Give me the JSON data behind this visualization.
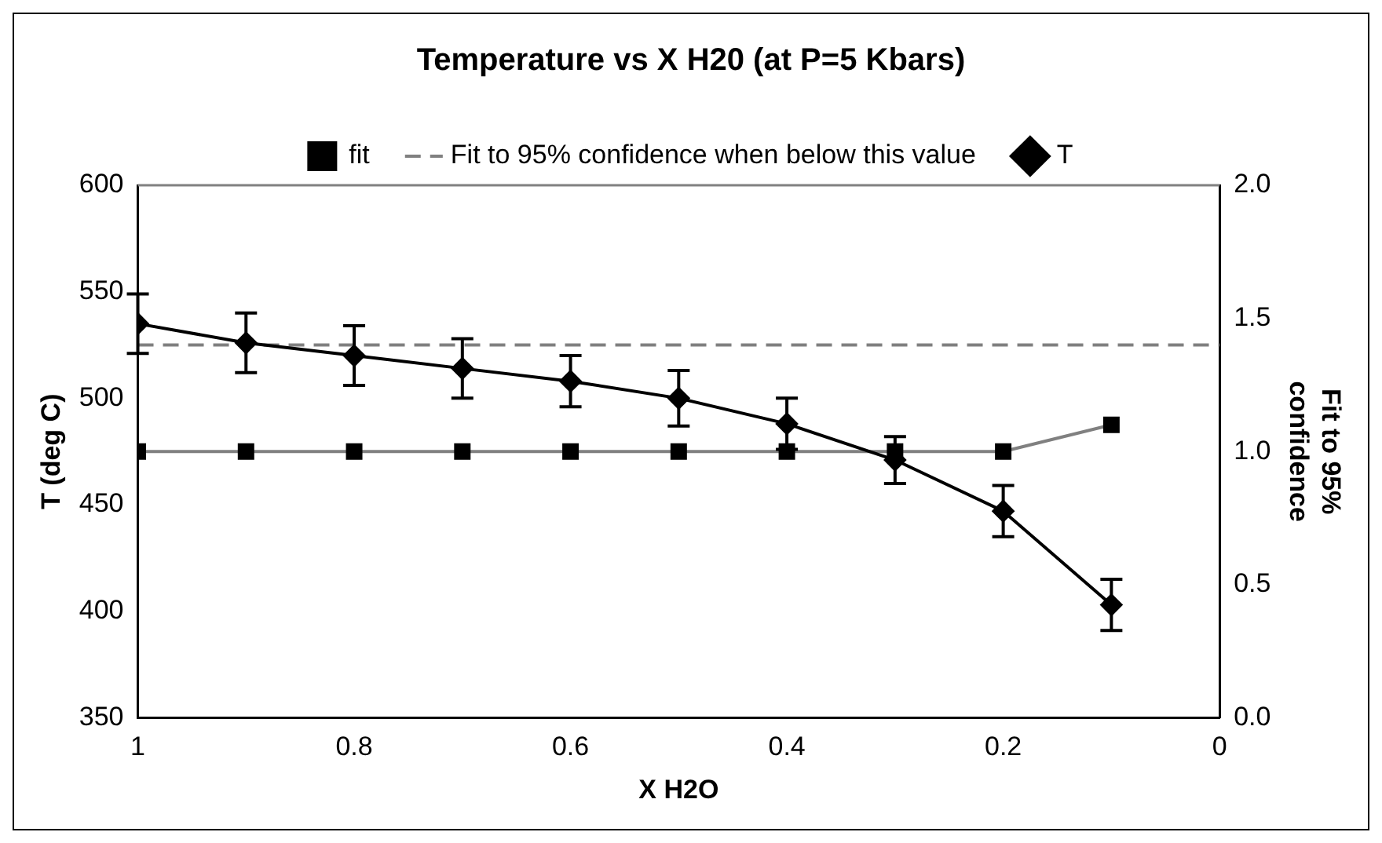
{
  "chart_data": {
    "type": "line",
    "title": "Temperature vs X H20 (at P=5 Kbars)",
    "xlabel": "X H2O",
    "ylabel": "T (deg C)",
    "y2label": "Fit to 95% confidence",
    "x": [
      1,
      0.9,
      0.8,
      0.7,
      0.6,
      0.5,
      0.4,
      0.3,
      0.2,
      0.1
    ],
    "series": [
      {
        "name": "fit",
        "color": "#808080",
        "axis": "y2",
        "marker": "square",
        "values": [
          1.0,
          1.0,
          1.0,
          1.0,
          1.0,
          1.0,
          1.0,
          1.0,
          1.0,
          1.1
        ]
      },
      {
        "name": "Fit to 95% confidence when below this value",
        "color": "#808080",
        "axis": "y2",
        "marker": "none",
        "line_style": "dashed",
        "x": [
          1,
          0
        ],
        "values": [
          1.4,
          1.4
        ]
      },
      {
        "name": "T",
        "color": "#000000",
        "axis": "y",
        "marker": "diamond",
        "values": [
          535,
          526,
          520,
          514,
          508,
          500,
          488,
          471,
          447,
          403
        ],
        "errors": [
          14,
          14,
          14,
          14,
          12,
          13,
          12,
          11,
          12,
          12
        ]
      }
    ],
    "xlim": [
      1,
      0
    ],
    "xticks": [
      1,
      0.8,
      0.6,
      0.4,
      0.2,
      0
    ],
    "ylim": [
      350,
      600
    ],
    "yticks": [
      350,
      400,
      450,
      500,
      550,
      600
    ],
    "y2lim": [
      0,
      2
    ],
    "y2ticks": [
      {
        "value": 0,
        "label": "0.0"
      },
      {
        "value": 0.5,
        "label": "0.5"
      },
      {
        "value": 1,
        "label": "1.0"
      },
      {
        "value": 1.5,
        "label": "1.5"
      },
      {
        "value": 2,
        "label": "2.0"
      }
    ],
    "grid": false,
    "legend": "top"
  }
}
